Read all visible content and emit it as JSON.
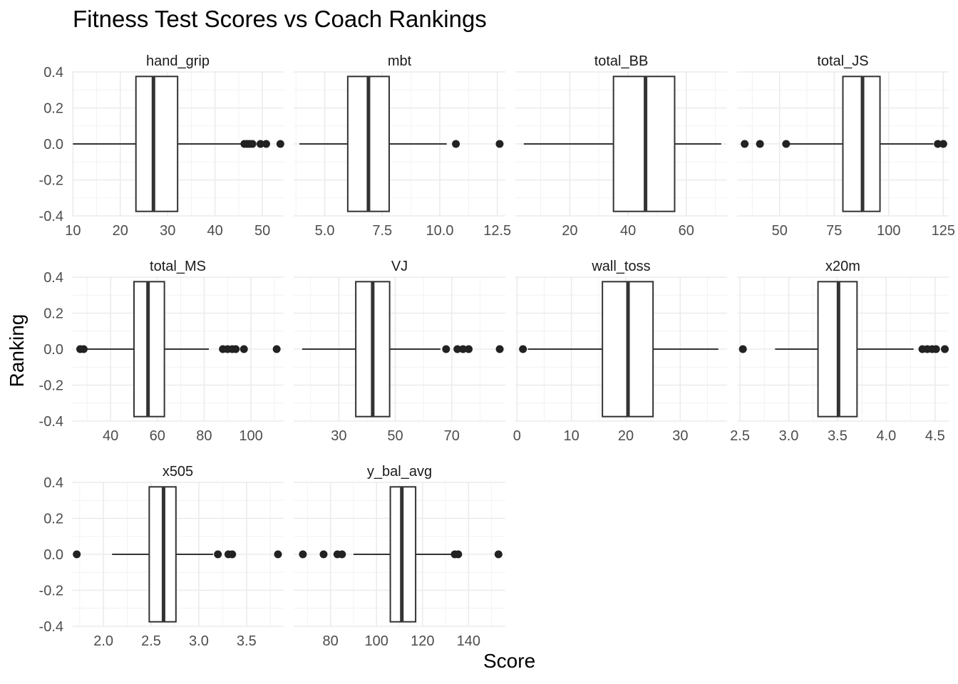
{
  "chart_data": {
    "type": "boxplot",
    "title": "Fitness Test Scores vs Coach Rankings",
    "xlabel": "Score",
    "ylabel": "Ranking",
    "layout": "facet-wrap 4 columns, free x scales",
    "grid": true,
    "y_ticks": [
      0.4,
      0.2,
      0.0,
      -0.2,
      -0.4
    ],
    "y_tick_labels": [
      "0.4",
      "0.2",
      "0.0",
      "-0.2",
      "-0.4"
    ],
    "ylim": [
      -0.4,
      0.4
    ],
    "colors": {
      "box_fill": "#ffffff",
      "outline": "#333333",
      "point": "#222222",
      "grid": "#ebebeb"
    },
    "panels": [
      {
        "name": "hand_grip",
        "xlim": [
          9.8,
          54.5
        ],
        "x_ticks": [
          10,
          20,
          30,
          40,
          50
        ],
        "x_tick_labels": [
          "10",
          "20",
          "30",
          "40",
          "50"
        ],
        "whisker_low": 10.0,
        "q1": 23.3,
        "median": 27.0,
        "q3": 32.1,
        "whisker_high": 45.8,
        "outliers": [
          46.2,
          46.8,
          47.3,
          47.9,
          49.6,
          50.8,
          53.8
        ]
      },
      {
        "name": "mbt",
        "xlim": [
          3.65,
          12.85
        ],
        "x_ticks": [
          5.0,
          7.5,
          10.0,
          12.5
        ],
        "x_tick_labels": [
          "5.0",
          "7.5",
          "10.0",
          "12.5"
        ],
        "whisker_low": 3.9,
        "q1": 6.0,
        "median": 6.9,
        "q3": 7.8,
        "whisker_high": 10.3,
        "outliers": [
          10.7,
          12.6
        ]
      },
      {
        "name": "total_BB",
        "xlim": [
          1.3,
          74.0
        ],
        "x_ticks": [
          20,
          40,
          60
        ],
        "x_tick_labels": [
          "20",
          "40",
          "60"
        ],
        "whisker_low": 4.2,
        "q1": 35.0,
        "median": 46.0,
        "q3": 56.0,
        "whisker_high": 72.0,
        "outliers": []
      },
      {
        "name": "total_JS",
        "xlim": [
          30.5,
          127.5
        ],
        "x_ticks": [
          50,
          75,
          100,
          125
        ],
        "x_tick_labels": [
          "50",
          "75",
          "100",
          "125"
        ],
        "whisker_low": 54.0,
        "q1": 79.0,
        "median": 88.0,
        "q3": 96.0,
        "whisker_high": 120.5,
        "outliers": [
          34.0,
          41.0,
          53.0,
          122.5,
          125.0
        ]
      },
      {
        "name": "total_MS",
        "xlim": [
          23.5,
          114.0
        ],
        "x_ticks": [
          40,
          60,
          80,
          100
        ],
        "x_tick_labels": [
          "40",
          "60",
          "80",
          "100"
        ],
        "whisker_low": 30.0,
        "q1": 50.0,
        "median": 56.0,
        "q3": 63.0,
        "whisker_high": 82.0,
        "outliers": [
          27.0,
          28.5,
          88.0,
          90.0,
          92.0,
          93.5,
          97.0,
          111.0
        ]
      },
      {
        "name": "VJ",
        "xlim": [
          14.0,
          89.0
        ],
        "x_ticks": [
          30,
          50,
          70
        ],
        "x_tick_labels": [
          "30",
          "50",
          "70"
        ],
        "whisker_low": 17.0,
        "q1": 36.0,
        "median": 42.0,
        "q3": 48.0,
        "whisker_high": 66.0,
        "outliers": [
          68.0,
          72.0,
          74.0,
          76.0,
          87.0
        ]
      },
      {
        "name": "wall_toss",
        "xlim": [
          -0.3,
          38.6
        ],
        "x_ticks": [
          0,
          10,
          20,
          30
        ],
        "x_tick_labels": [
          "0",
          "10",
          "20",
          "30"
        ],
        "whisker_low": 2.0,
        "q1": 15.7,
        "median": 20.4,
        "q3": 25.0,
        "whisker_high": 37.0,
        "outliers": [
          1.1
        ]
      },
      {
        "name": "x20m",
        "xlim": [
          2.47,
          4.64
        ],
        "x_ticks": [
          2.5,
          3.0,
          3.5,
          4.0,
          4.5
        ],
        "x_tick_labels": [
          "2.5",
          "3.0",
          "3.5",
          "4.0",
          "4.5"
        ],
        "whisker_low": 2.86,
        "q1": 3.3,
        "median": 3.51,
        "q3": 3.7,
        "whisker_high": 4.28,
        "outliers": [
          2.53,
          4.37,
          4.42,
          4.47,
          4.51,
          4.6
        ]
      },
      {
        "name": "x505",
        "xlim": [
          1.67,
          3.89
        ],
        "x_ticks": [
          2.0,
          2.5,
          3.0,
          3.5
        ],
        "x_tick_labels": [
          "2.0",
          "2.5",
          "3.0",
          "3.5"
        ],
        "whisker_low": 2.09,
        "q1": 2.48,
        "median": 2.63,
        "q3": 2.76,
        "whisker_high": 3.15,
        "outliers": [
          1.72,
          3.2,
          3.31,
          3.35,
          3.83
        ]
      },
      {
        "name": "y_bal_avg",
        "xlim": [
          64.0,
          156.0
        ],
        "x_ticks": [
          80,
          100,
          120,
          140
        ],
        "x_tick_labels": [
          "80",
          "100",
          "120",
          "140"
        ],
        "whisker_low": 90.0,
        "q1": 106.0,
        "median": 111.0,
        "q3": 117.0,
        "whisker_high": 133.0,
        "outliers": [
          68.0,
          77.0,
          83.0,
          85.0,
          134.0,
          135.5,
          153.0
        ]
      }
    ]
  }
}
